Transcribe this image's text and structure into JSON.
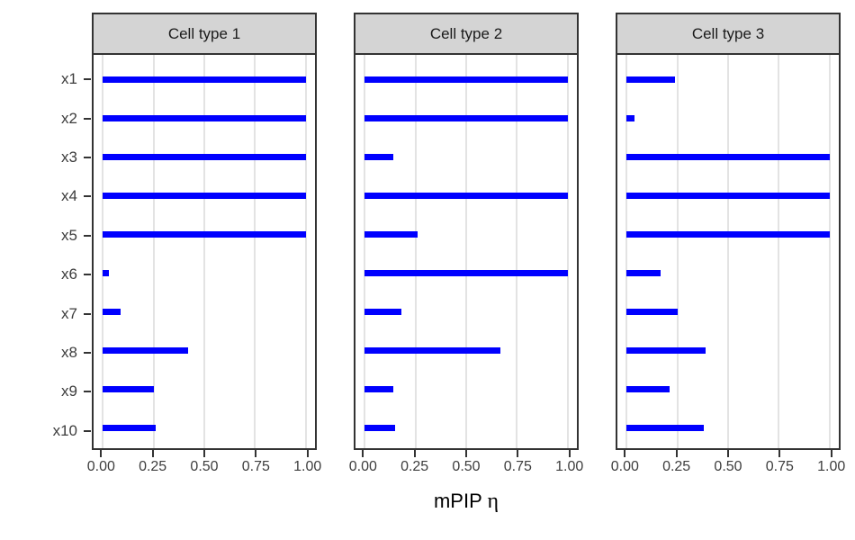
{
  "chart_data": {
    "type": "bar",
    "orientation": "horizontal",
    "title": "",
    "xlabel": "mPIP η",
    "xlabel_text": "mPIP",
    "xlabel_symbol": "η",
    "ylabel": "",
    "categories": [
      "x1",
      "x2",
      "x3",
      "x4",
      "x5",
      "x6",
      "x7",
      "x8",
      "x9",
      "x10"
    ],
    "facets": [
      {
        "title": "Cell type 1",
        "values": [
          1.0,
          1.0,
          1.0,
          1.0,
          1.0,
          0.03,
          0.09,
          0.42,
          0.25,
          0.26
        ]
      },
      {
        "title": "Cell type 2",
        "values": [
          1.0,
          1.0,
          0.14,
          1.0,
          0.26,
          1.0,
          0.18,
          0.67,
          0.14,
          0.15
        ]
      },
      {
        "title": "Cell type 3",
        "values": [
          0.24,
          0.04,
          1.0,
          1.0,
          1.0,
          0.17,
          0.25,
          0.39,
          0.21,
          0.38
        ]
      }
    ],
    "x_ticks": [
      0.0,
      0.25,
      0.5,
      0.75,
      1.0
    ],
    "x_tick_labels": [
      "0.00",
      "0.25",
      "0.50",
      "0.75",
      "1.00"
    ],
    "xlim": [
      0,
      1
    ],
    "grid": true,
    "legend_position": "none",
    "bar_color": "#0000ff",
    "strip_background": "#d4d4d4",
    "panel_border_color": "#333333",
    "grid_color": "#e3e3e3",
    "axis_text_color": "#3d3d3d"
  }
}
